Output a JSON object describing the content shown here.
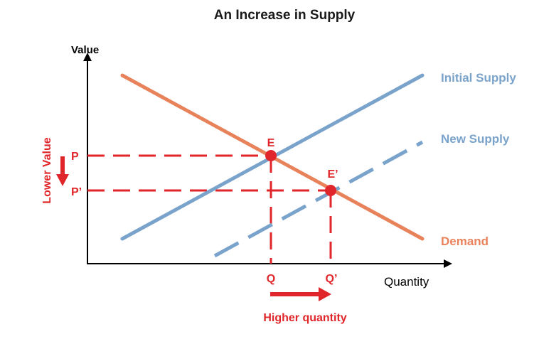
{
  "title": "An Increase in Supply",
  "axes": {
    "y_label": "Value",
    "x_label": "Quantity"
  },
  "curves": {
    "initial_supply": "Initial Supply",
    "new_supply": "New Supply",
    "demand": "Demand"
  },
  "points": {
    "e": "E",
    "e_prime": "E’"
  },
  "ticks": {
    "p": "P",
    "p_prime": "P’",
    "q": "Q",
    "q_prime": "Q’"
  },
  "annotations": {
    "lower_value": "Lower Value",
    "higher_quantity": "Higher quantity"
  },
  "colors": {
    "supply": "#7aa3cc",
    "demand": "#e8825a",
    "highlight": "#e0262a",
    "axis": "#000000"
  }
}
